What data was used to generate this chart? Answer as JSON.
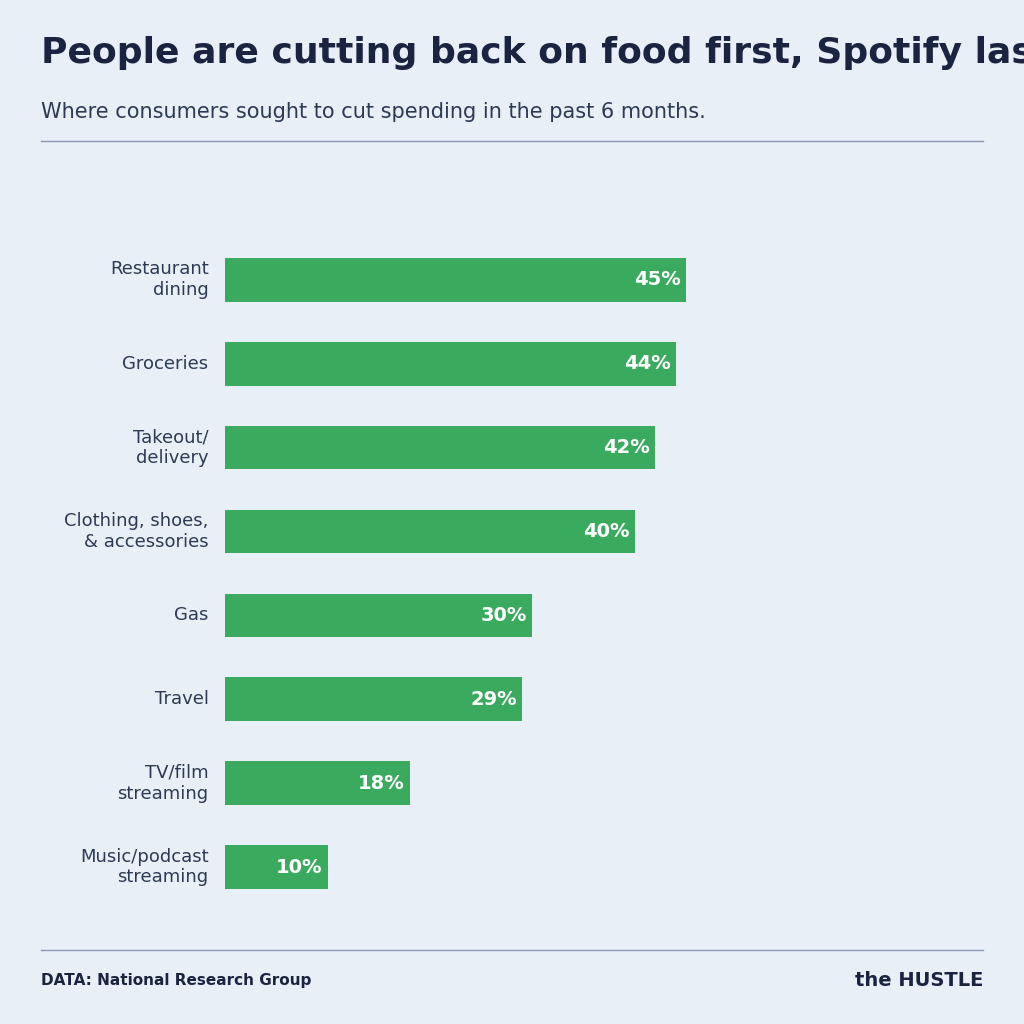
{
  "title": "People are cutting back on food first, Spotify last",
  "subtitle": "Where consumers sought to cut spending in the past 6 months.",
  "categories": [
    "Restaurant\ndining",
    "Groceries",
    "Takeout/\ndelivery",
    "Clothing, shoes,\n& accessories",
    "Gas",
    "Travel",
    "TV/film\nstreaming",
    "Music/podcast\nstreaming"
  ],
  "values": [
    45,
    44,
    42,
    40,
    30,
    29,
    18,
    10
  ],
  "bar_color": "#3aab5e",
  "bar_text_color": "#ffffff",
  "background_color": "#e8eff6",
  "title_color": "#1a2340",
  "subtitle_color": "#2c3a55",
  "label_color": "#2c3a55",
  "footer_text": "DATA: National Research Group",
  "xlim": [
    0,
    50
  ],
  "title_fontsize": 26,
  "subtitle_fontsize": 15,
  "label_fontsize": 13,
  "value_fontsize": 14,
  "footer_fontsize": 11
}
